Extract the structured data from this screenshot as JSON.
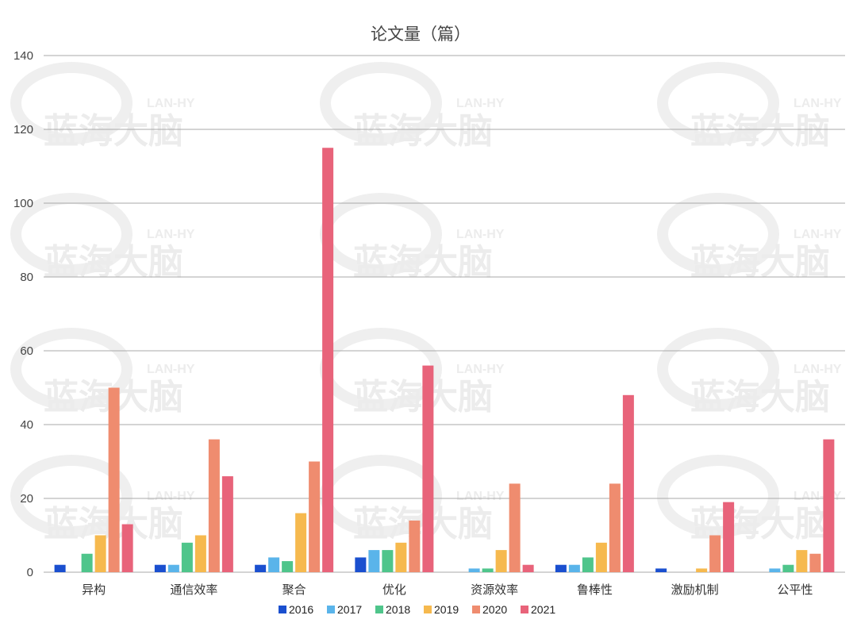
{
  "chart_data": {
    "type": "bar",
    "title": "论文量（篇）",
    "categories": [
      "异构",
      "通信效率",
      "聚合",
      "优化",
      "资源效率",
      "鲁棒性",
      "激励机制",
      "公平性"
    ],
    "series": [
      {
        "name": "2016",
        "color": "#1a4fcf",
        "values": [
          2,
          2,
          2,
          4,
          0,
          2,
          1,
          0
        ]
      },
      {
        "name": "2017",
        "color": "#5ab4ea",
        "values": [
          0,
          2,
          4,
          6,
          1,
          2,
          0,
          1
        ]
      },
      {
        "name": "2018",
        "color": "#4fc58b",
        "values": [
          5,
          8,
          3,
          6,
          1,
          4,
          0,
          2
        ]
      },
      {
        "name": "2019",
        "color": "#f6b94e",
        "values": [
          10,
          10,
          16,
          8,
          6,
          8,
          1,
          6
        ]
      },
      {
        "name": "2020",
        "color": "#ef8c6f",
        "values": [
          50,
          36,
          30,
          14,
          24,
          24,
          10,
          5
        ]
      },
      {
        "name": "2021",
        "color": "#e8637a",
        "values": [
          13,
          26,
          115,
          56,
          2,
          48,
          19,
          36
        ]
      }
    ],
    "ylim": [
      0,
      140
    ],
    "yticks": [
      "0",
      "20",
      "40",
      "60",
      "80",
      "100",
      "120",
      "140"
    ],
    "grid": true,
    "legend_position": "bottom",
    "xlabel": "",
    "ylabel": ""
  },
  "watermark": {
    "text": "蓝海大脑",
    "small_text": "LAN-HY"
  }
}
